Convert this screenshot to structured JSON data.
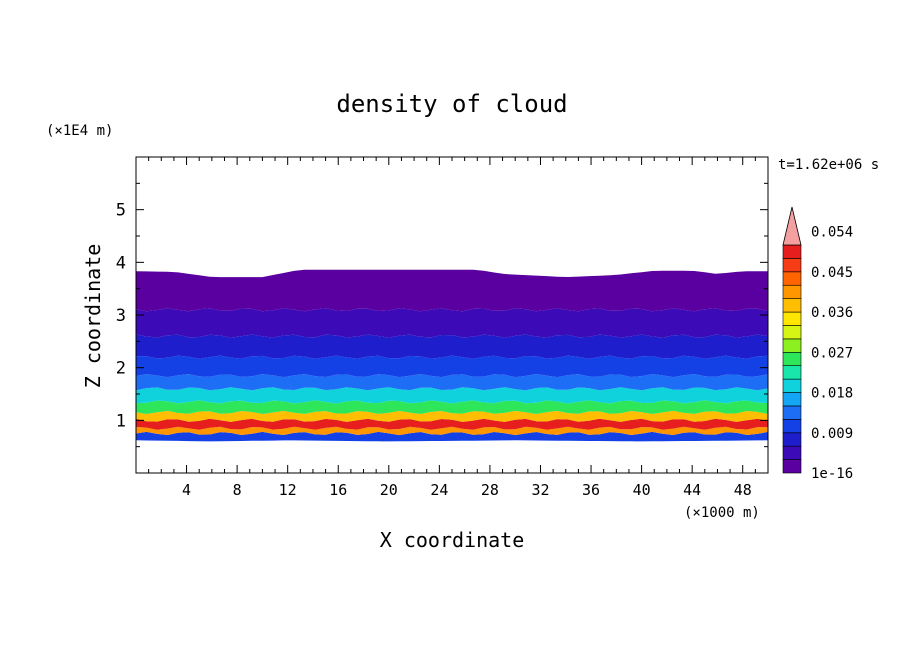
{
  "chart_data": {
    "type": "heatmap",
    "title": "density of cloud",
    "xlabel": "X coordinate",
    "ylabel": "Z coordinate",
    "x_unit": "(×1000 m)",
    "y_unit": "(×1E4 m)",
    "time_label": "t=1.62e+06 s",
    "xlim": [
      0,
      50
    ],
    "ylim": [
      0,
      6
    ],
    "x_ticks": [
      4,
      8,
      12,
      16,
      20,
      24,
      28,
      32,
      36,
      40,
      44,
      48
    ],
    "y_ticks": [
      1,
      2,
      3,
      4,
      5
    ],
    "grid": false,
    "colorbar": {
      "position": "right",
      "levels": [
        "1e-16",
        "0.009",
        "0.018",
        "0.027",
        "0.036",
        "0.045",
        "0.054"
      ],
      "colors": [
        "#5a00a0",
        "#3d0ab8",
        "#1e1ecc",
        "#1441e6",
        "#1e6ef5",
        "#14a5f5",
        "#0fd2dc",
        "#19e6aa",
        "#2de65a",
        "#8cf01e",
        "#d7f514",
        "#ffe600",
        "#ffbe00",
        "#ff9600",
        "#ff6400",
        "#f53c14",
        "#e61e1e",
        "#f5a0a0"
      ],
      "extend_color": "#f5a0a0"
    },
    "layers": [
      {
        "z_bottom": 0.6,
        "z_top": 0.75,
        "value": 0.012
      },
      {
        "z_bottom": 0.75,
        "z_top": 0.85,
        "value": 0.045
      },
      {
        "z_bottom": 0.85,
        "z_top": 1.0,
        "value": 0.056
      },
      {
        "z_bottom": 1.0,
        "z_top": 1.15,
        "value": 0.042
      },
      {
        "z_bottom": 1.15,
        "z_top": 1.35,
        "value": 0.03
      },
      {
        "z_bottom": 1.35,
        "z_top": 1.6,
        "value": 0.022
      },
      {
        "z_bottom": 1.6,
        "z_top": 1.85,
        "value": 0.016
      },
      {
        "z_bottom": 1.85,
        "z_top": 2.2,
        "value": 0.011
      },
      {
        "z_bottom": 2.2,
        "z_top": 2.6,
        "value": 0.007
      },
      {
        "z_bottom": 2.6,
        "z_top": 3.1,
        "value": 0.004
      },
      {
        "z_bottom": 3.1,
        "z_top": 3.85,
        "value": 0.001
      }
    ],
    "cloud_top": [
      {
        "x": 0,
        "z": 3.83
      },
      {
        "x": 3,
        "z": 3.82
      },
      {
        "x": 6,
        "z": 3.72
      },
      {
        "x": 10,
        "z": 3.72
      },
      {
        "x": 13,
        "z": 3.86
      },
      {
        "x": 20,
        "z": 3.86
      },
      {
        "x": 27,
        "z": 3.86
      },
      {
        "x": 29,
        "z": 3.78
      },
      {
        "x": 34,
        "z": 3.72
      },
      {
        "x": 38,
        "z": 3.76
      },
      {
        "x": 41,
        "z": 3.84
      },
      {
        "x": 44,
        "z": 3.84
      },
      {
        "x": 46,
        "z": 3.78
      },
      {
        "x": 48,
        "z": 3.83
      },
      {
        "x": 50,
        "z": 3.83
      }
    ],
    "cloud_base": [
      {
        "x": 0,
        "z": 0.62
      },
      {
        "x": 6,
        "z": 0.6
      },
      {
        "x": 12,
        "z": 0.62
      },
      {
        "x": 20,
        "z": 0.6
      },
      {
        "x": 30,
        "z": 0.62
      },
      {
        "x": 40,
        "z": 0.6
      },
      {
        "x": 50,
        "z": 0.62
      }
    ]
  }
}
